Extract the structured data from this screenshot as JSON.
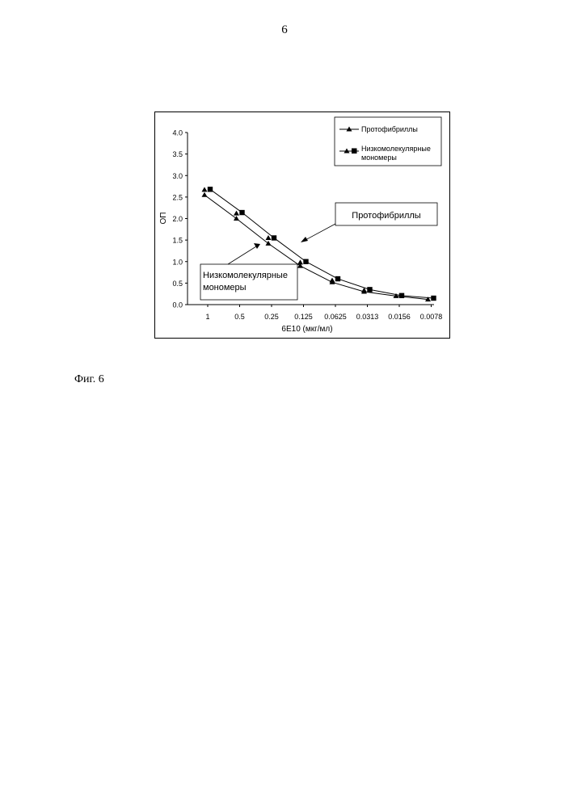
{
  "page": {
    "number": "6",
    "figure_caption": "Фиг. 6"
  },
  "chart_data": {
    "type": "line",
    "categories": [
      "1",
      "0.5",
      "0.25",
      "0.125",
      "0.0625",
      "0.0313",
      "0.0156",
      "0.0078"
    ],
    "xlabel": "6E10 (мкг/мл)",
    "ylabel": "ОП",
    "ylim": [
      0,
      4
    ],
    "yticks": [
      "0.0",
      "0.5",
      "1.0",
      "1.5",
      "2.0",
      "2.5",
      "3.0",
      "3.5",
      "4.0"
    ],
    "grid": false,
    "legend_position": "top-right",
    "legend": {
      "protofibrils": "Протофибриллы",
      "monomers_line1": "Низкомолекулярные",
      "monomers_line2": "мономеры"
    },
    "series": [
      {
        "name": "Протофибриллы",
        "marker": "triangle",
        "values": [
          2.55,
          2.0,
          1.42,
          0.9,
          0.52,
          0.3,
          0.2,
          0.12
        ],
        "marker_values": [
          [
            2.55,
            2.67
          ],
          [
            2.0,
            2.12
          ],
          [
            1.42,
            1.55
          ],
          [
            0.9,
            0.98
          ],
          [
            0.52,
            0.56
          ],
          [
            0.3,
            0.33
          ],
          [
            0.2
          ],
          [
            0.12
          ]
        ]
      },
      {
        "name": "Низкомолекулярные мономеры",
        "marker": "square",
        "values": [
          2.68,
          2.14,
          1.55,
          1.0,
          0.6,
          0.35,
          0.21,
          0.15
        ]
      }
    ],
    "annotations": {
      "protofibrils_box": "Протофибриллы",
      "monomers_box_line1": "Низкомолекулярные",
      "monomers_box_line2": "мономеры"
    },
    "colors": {
      "line": "#000000",
      "background": "#ffffff"
    }
  }
}
